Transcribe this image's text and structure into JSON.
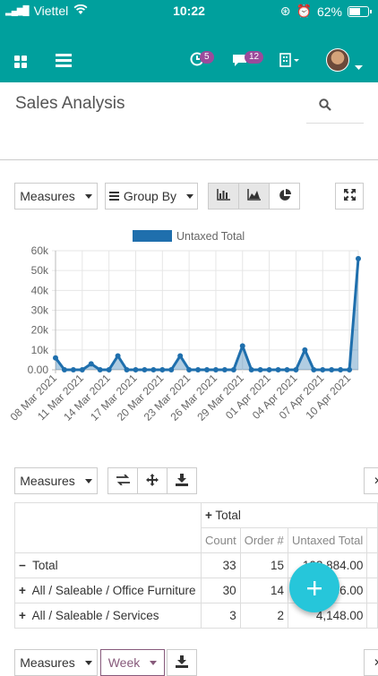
{
  "status_bar": {
    "carrier": "Viettel",
    "time": "10:22",
    "battery": "62%",
    "battery_level": 0.62
  },
  "navbar": {
    "activity_count": "5",
    "messages_count": "12"
  },
  "control_panel": {
    "title": "Sales Analysis"
  },
  "toolbar": {
    "measures_label": "Measures",
    "group_by_label": "Group By"
  },
  "chart_data": {
    "type": "line",
    "legend": [
      "Untaxed Total"
    ],
    "series": [
      {
        "name": "Untaxed Total",
        "color": "#1f6fad",
        "x": [
          "08 Mar 2021",
          "09 Mar 2021",
          "10 Mar 2021",
          "11 Mar 2021",
          "12 Mar 2021",
          "13 Mar 2021",
          "14 Mar 2021",
          "15 Mar 2021",
          "16 Mar 2021",
          "17 Mar 2021",
          "18 Mar 2021",
          "19 Mar 2021",
          "20 Mar 2021",
          "21 Mar 2021",
          "22 Mar 2021",
          "23 Mar 2021",
          "24 Mar 2021",
          "25 Mar 2021",
          "26 Mar 2021",
          "27 Mar 2021",
          "28 Mar 2021",
          "29 Mar 2021",
          "30 Mar 2021",
          "31 Mar 2021",
          "01 Apr 2021",
          "02 Apr 2021",
          "03 Apr 2021",
          "04 Apr 2021",
          "05 Apr 2021",
          "06 Apr 2021",
          "07 Apr 2021",
          "08 Apr 2021",
          "09 Apr 2021",
          "10 Apr 2021",
          "11 Apr 2021"
        ],
        "values": [
          6000,
          0,
          0,
          0,
          3000,
          0,
          0,
          7000,
          0,
          0,
          0,
          0,
          0,
          0,
          7000,
          0,
          0,
          0,
          0,
          0,
          0,
          12000,
          0,
          0,
          0,
          0,
          0,
          0,
          10000,
          0,
          0,
          0,
          0,
          0,
          56000
        ]
      }
    ],
    "x_tick_labels": [
      "08 Mar 2021",
      "11 Mar 2021",
      "14 Mar 2021",
      "17 Mar 2021",
      "20 Mar 2021",
      "23 Mar 2021",
      "26 Mar 2021",
      "29 Mar 2021",
      "01 Apr 2021",
      "04 Apr 2021",
      "07 Apr 2021",
      "10 Apr 2021"
    ],
    "y_tick_labels": [
      "0.00",
      "10k",
      "20k",
      "30k",
      "40k",
      "50k",
      "60k"
    ],
    "ylim": [
      0,
      60000
    ],
    "grid": true,
    "legend_position": "top-center"
  },
  "pivot": {
    "measures_label": "Measures",
    "col_header": "Total",
    "measure_headers": [
      "Count",
      "Order #",
      "Untaxed Total"
    ],
    "rows": [
      {
        "sign": "−",
        "label": "Total",
        "count": "33",
        "orders": "15",
        "untaxed": "103,884.00"
      },
      {
        "sign": "+",
        "label": "All / Saleable / Office Furniture",
        "count": "30",
        "orders": "14",
        "untaxed": "99,736.00"
      },
      {
        "sign": "+",
        "label": "All / Saleable / Services",
        "count": "3",
        "orders": "2",
        "untaxed": "4,148.00"
      }
    ]
  },
  "bottom_toolbar": {
    "measures_label": "Measures",
    "interval_label": "Week"
  }
}
